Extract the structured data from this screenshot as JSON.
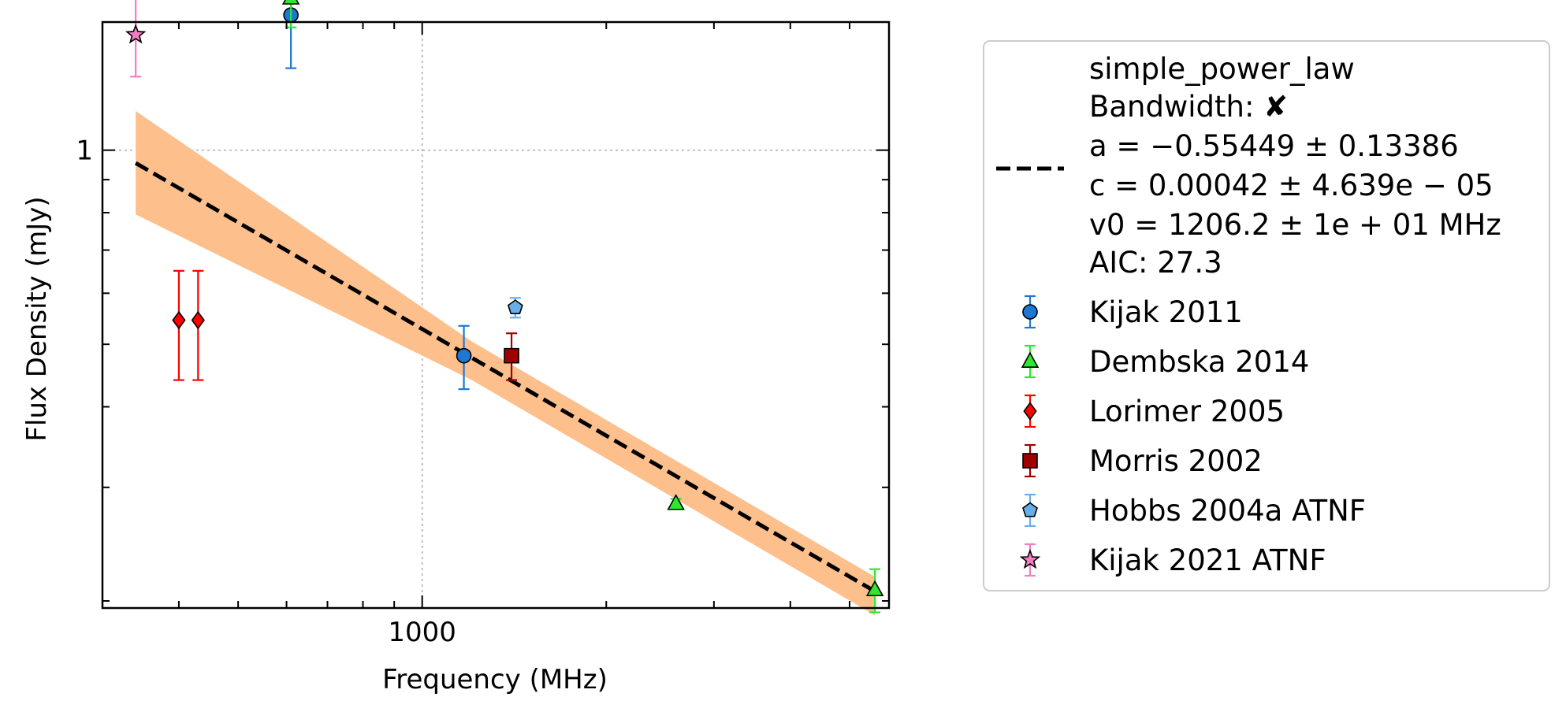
{
  "chart_data": {
    "type": "scatter",
    "xlabel": "Frequency (MHz)",
    "ylabel": "Flux Density (mJy)",
    "x_scale": "log",
    "y_scale": "log",
    "xlim": [
      300,
      5800
    ],
    "ylim": [
      0.195,
      1.58
    ],
    "x_tick_labels": [
      {
        "value": 1000,
        "label": "1000"
      }
    ],
    "y_tick_labels": [
      {
        "value": 1,
        "label": "1"
      }
    ],
    "grid": true,
    "legend_position": "outside-right",
    "fit": {
      "name": "simple_power_law",
      "bandwidth_label": "Bandwidth: ",
      "bandwidth_mark": "✘",
      "lines": [
        "a = −0.55449 ± 0.13386",
        "c = 0.00042 ± 4.639e − 05",
        "v0 = 1206.2 ± 1e + 01 MHz",
        "AIC: 27.3"
      ],
      "line_color": "#000000",
      "band_color": "#fdbf8c",
      "line": [
        {
          "x": 340,
          "y": 0.955
        },
        {
          "x": 5500,
          "y": 0.207
        }
      ],
      "band_upper": [
        {
          "x": 340,
          "y": 1.15
        },
        {
          "x": 1206,
          "y": 0.505
        },
        {
          "x": 5500,
          "y": 0.218
        }
      ],
      "band_lower": [
        {
          "x": 340,
          "y": 0.795
        },
        {
          "x": 1206,
          "y": 0.44
        },
        {
          "x": 5500,
          "y": 0.19
        }
      ]
    },
    "series": [
      {
        "name": "Kijak 2011",
        "marker": "circle",
        "color": "#1f77d4",
        "ecolor": "#1f77d4",
        "points": [
          {
            "x": 610,
            "y": 1.62,
            "lo": 1.34,
            "hi": 1.9
          },
          {
            "x": 1170,
            "y": 0.48,
            "lo": 0.426,
            "hi": 0.534
          }
        ]
      },
      {
        "name": "Dembska 2014",
        "marker": "triangle",
        "color": "#2ee82e",
        "ecolor": "#2ee82e",
        "points": [
          {
            "x": 610,
            "y": 1.72,
            "lo": 1.55,
            "hi": 1.9
          },
          {
            "x": 2600,
            "y": 0.283,
            "lo": 0.278,
            "hi": 0.288
          },
          {
            "x": 5500,
            "y": 0.208,
            "lo": 0.192,
            "hi": 0.224
          }
        ]
      },
      {
        "name": "Lorimer 2005",
        "marker": "diamond",
        "color": "#ff0000",
        "ecolor": "#ff0000",
        "points": [
          {
            "x": 400,
            "y": 0.545,
            "lo": 0.44,
            "hi": 0.65
          },
          {
            "x": 430,
            "y": 0.545,
            "lo": 0.44,
            "hi": 0.65
          }
        ]
      },
      {
        "name": "Morris 2002",
        "marker": "square",
        "color": "#a00000",
        "ecolor": "#a00000",
        "points": [
          {
            "x": 1400,
            "y": 0.48,
            "lo": 0.44,
            "hi": 0.52
          }
        ]
      },
      {
        "name": "Hobbs 2004a ATNF",
        "marker": "pentagon",
        "color": "#6aaee8",
        "ecolor": "#6aaee8",
        "points": [
          {
            "x": 1420,
            "y": 0.57,
            "lo": 0.55,
            "hi": 0.59
          }
        ]
      },
      {
        "name": "Kijak 2021 ATNF",
        "marker": "star",
        "color": "#f07ec0",
        "ecolor": "#f07ec0",
        "points": [
          {
            "x": 340,
            "y": 1.51,
            "lo": 1.3,
            "hi": 1.72
          }
        ]
      }
    ]
  }
}
